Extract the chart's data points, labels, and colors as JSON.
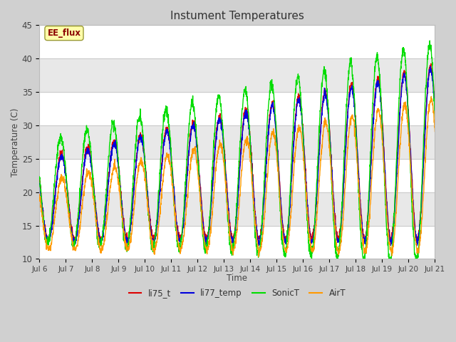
{
  "title": "Instument Temperatures",
  "xlabel": "Time",
  "ylabel": "Temperature (C)",
  "ylim": [
    10,
    45
  ],
  "xtick_labels": [
    "Jul 6",
    "Jul 7",
    "Jul 8",
    "Jul 9",
    "Jul 10",
    "Jul 11",
    "Jul 12",
    "Jul 13",
    "Jul 14",
    "Jul 15",
    "Jul 16",
    "Jul 17",
    "Jul 18",
    "Jul 19",
    "Jul 20",
    "Jul 21"
  ],
  "shaded_band": [
    35.0,
    40.0
  ],
  "fig_bg": "#d0d0d0",
  "axes_bg": "#ffffff",
  "alt_band_color": "#e8e8e8",
  "line_colors": {
    "li75_t": "#dd0000",
    "li77_temp": "#0000dd",
    "SonicT": "#00dd00",
    "AirT": "#ff9900"
  },
  "annotation_text": "EE_flux",
  "annotation_color": "#8b0000",
  "annotation_bg": "#ffffaa",
  "annotation_edge": "#999933",
  "n_days": 15,
  "seed": 42,
  "yticks": [
    10,
    15,
    20,
    25,
    30,
    35,
    40,
    45
  ]
}
